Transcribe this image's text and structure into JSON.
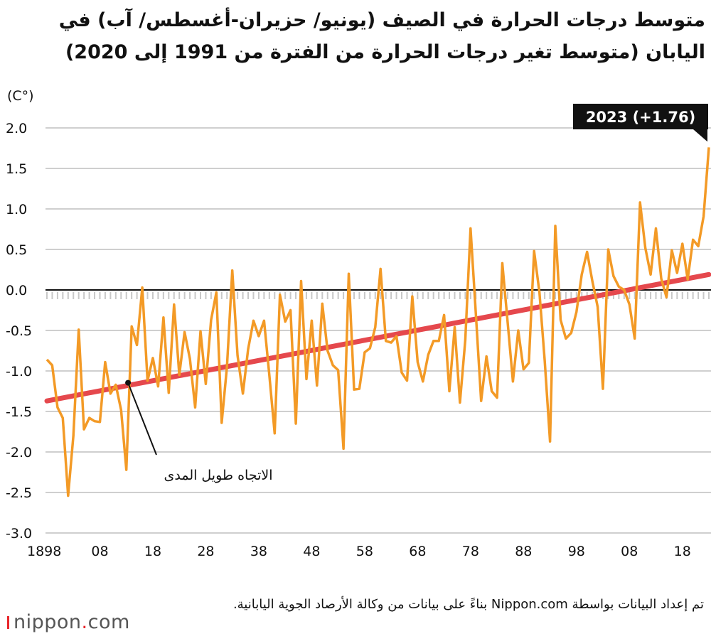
{
  "title": {
    "line1": "متوسط درجات الحرارة في الصيف (يونيو/ حزيران-أغسطس/ آب) في",
    "line2": "اليابان (متوسط تغير درجات الحرارة من الفترة من 1991 إلى 2020)"
  },
  "footer": {
    "source": "تم إعداد البيانات بواسطة Nippon.com بناءً على بيانات من وكالة الأرصاد الجوية اليابانية.",
    "logo": "nippon.com"
  },
  "chart_data": {
    "type": "line",
    "title": "متوسط درجات الحرارة في الصيف (يونيو/ حزيران-أغسطس/ آب) في اليابان (متوسط تغير درجات الحرارة من الفترة من 1991 إلى 2020)",
    "ylabel": "(C°)",
    "xlabel": "",
    "xlim": [
      1898,
      2023
    ],
    "ylim": [
      -3.0,
      2.0
    ],
    "grid": true,
    "yticks": [
      2.0,
      1.5,
      1.0,
      0.5,
      0.0,
      -0.5,
      -1.0,
      -1.5,
      -2.0,
      -2.5,
      -3.0
    ],
    "ytick_labels": [
      "2.0",
      "1.5",
      "1.0",
      "0.5",
      "0.0",
      "-0.5",
      "-1.0",
      "-1.5",
      "-2.0",
      "-2.5",
      "-3.0"
    ],
    "xticks": [
      1898,
      1908,
      1918,
      1928,
      1938,
      1948,
      1958,
      1968,
      1978,
      1988,
      1998,
      2008,
      2018
    ],
    "xtick_labels": [
      "1898",
      "08",
      "18",
      "28",
      "38",
      "48",
      "58",
      "68",
      "78",
      "88",
      "98",
      "08",
      "18"
    ],
    "series": [
      {
        "name": "anomaly",
        "color": "#f39a26",
        "x_start": 1898,
        "values": [
          -0.86,
          -0.93,
          -1.45,
          -1.58,
          -2.54,
          -1.8,
          -0.49,
          -1.72,
          -1.58,
          -1.62,
          -1.63,
          -0.89,
          -1.28,
          -1.17,
          -1.48,
          -2.22,
          -0.45,
          -0.68,
          0.03,
          -1.12,
          -0.84,
          -1.19,
          -0.34,
          -1.27,
          -0.18,
          -1.05,
          -0.52,
          -0.85,
          -1.45,
          -0.51,
          -1.16,
          -0.37,
          -0.03,
          -1.64,
          -0.95,
          0.24,
          -0.81,
          -1.28,
          -0.73,
          -0.38,
          -0.57,
          -0.38,
          -1.05,
          -1.77,
          -0.06,
          -0.39,
          -0.25,
          -1.65,
          0.11,
          -1.1,
          -0.38,
          -1.18,
          -0.17,
          -0.75,
          -0.93,
          -0.99,
          -1.96,
          0.2,
          -1.23,
          -1.22,
          -0.77,
          -0.72,
          -0.46,
          0.26,
          -0.63,
          -0.65,
          -0.57,
          -1.02,
          -1.12,
          -0.08,
          -0.89,
          -1.13,
          -0.8,
          -0.63,
          -0.63,
          -0.31,
          -1.25,
          -0.46,
          -1.39,
          -0.62,
          0.76,
          -0.3,
          -1.37,
          -0.82,
          -1.25,
          -1.33,
          0.33,
          -0.4,
          -1.13,
          -0.5,
          -0.98,
          -0.9,
          0.48,
          -0.03,
          -0.87,
          -1.87,
          0.79,
          -0.37,
          -0.6,
          -0.53,
          -0.27,
          0.19,
          0.47,
          0.11,
          -0.21,
          -1.22,
          0.5,
          0.17,
          0.04,
          0.0,
          -0.18,
          -0.6,
          1.08,
          0.52,
          0.19,
          0.76,
          0.14,
          -0.09,
          0.49,
          0.21,
          0.57,
          0.13,
          0.62,
          0.54,
          0.91,
          1.76
        ]
      },
      {
        "name": "الاتجاه طويل المدى",
        "color": "#e5484d",
        "x": [
          1898,
          2023
        ],
        "values": [
          -1.37,
          0.19
        ]
      }
    ],
    "annotations": [
      {
        "text": "2023 (+1.76)",
        "x": 2023,
        "y": 1.76
      },
      {
        "text": "الاتجاه طويل المدى",
        "x": 1916,
        "y": -1.15
      }
    ]
  }
}
